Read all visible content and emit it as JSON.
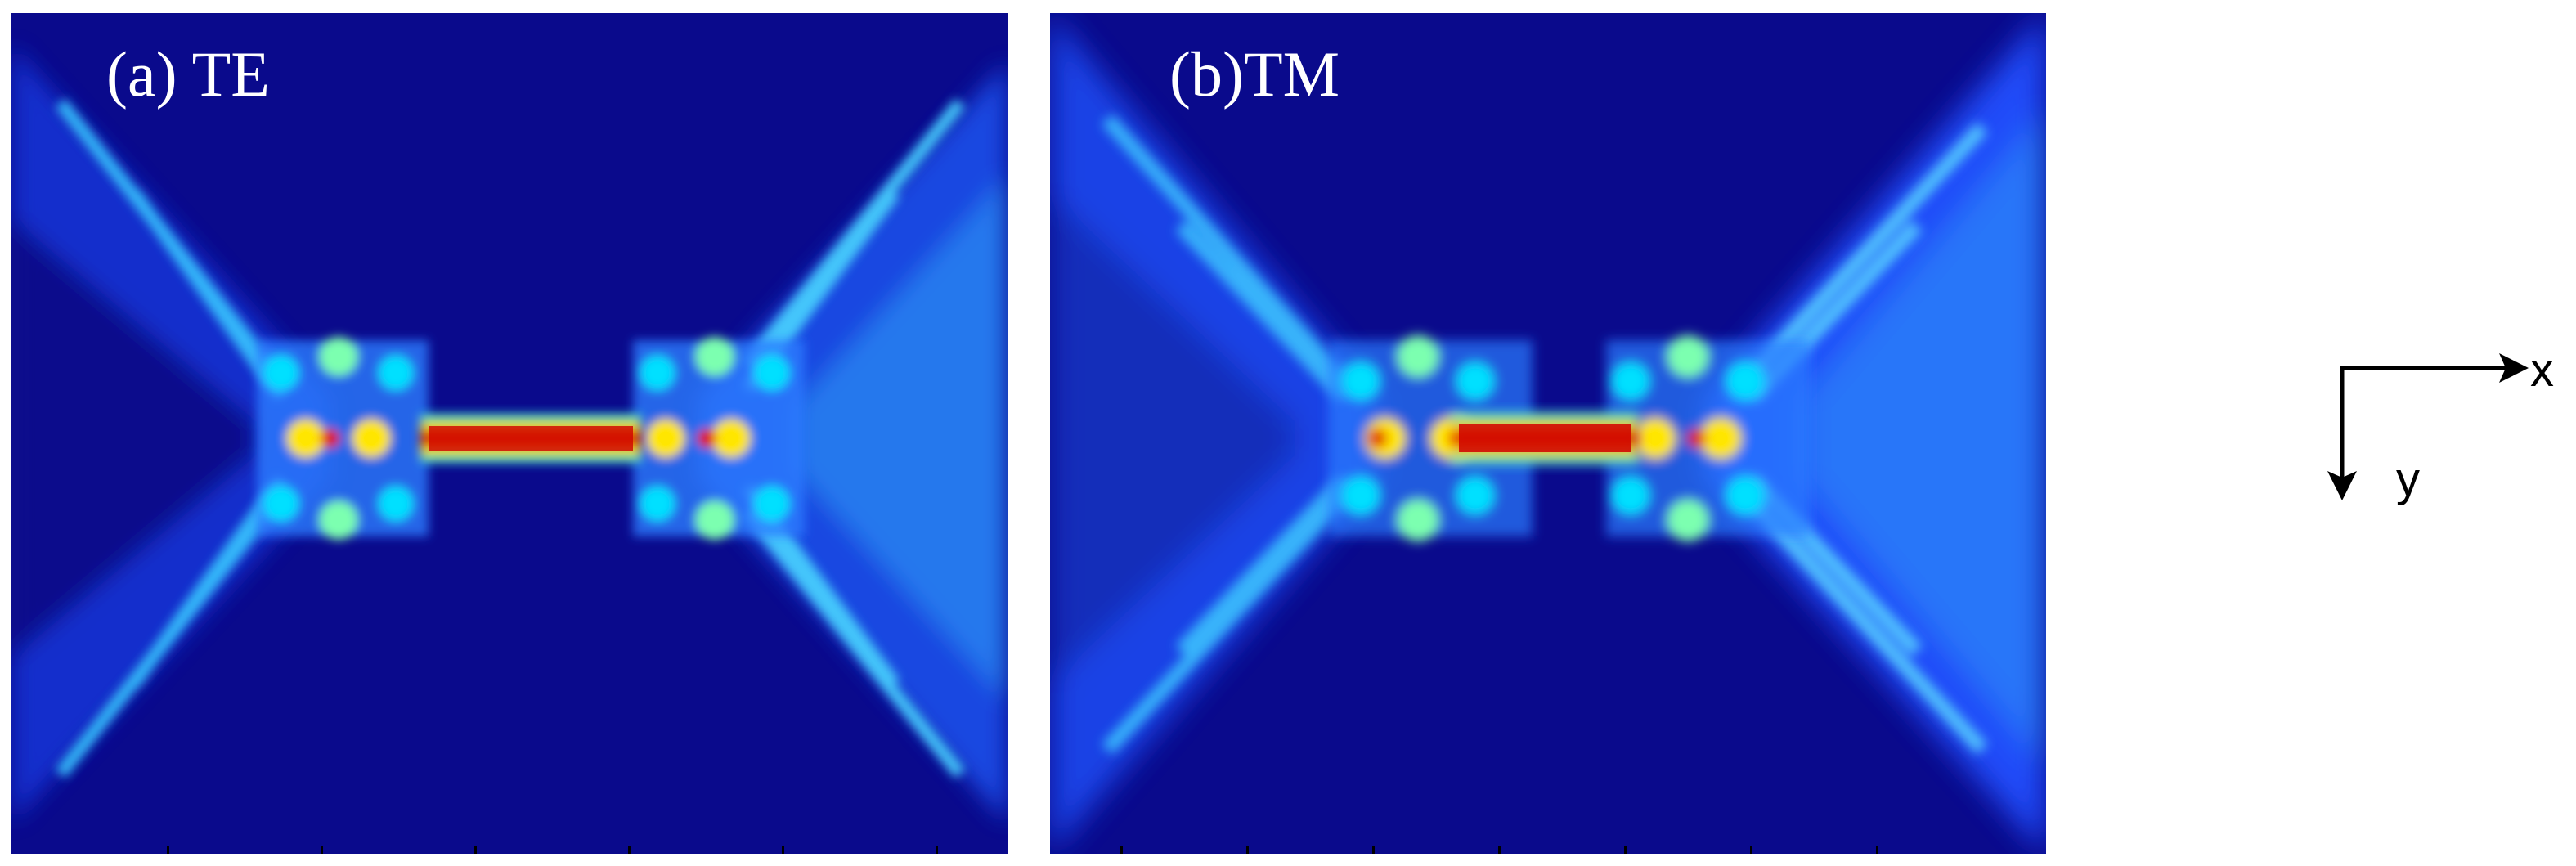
{
  "figure": {
    "panels": [
      {
        "id": "a",
        "label": "(a) TE"
      },
      {
        "id": "b",
        "label": "(b)TM"
      }
    ],
    "axes": {
      "x_label": "x",
      "y_label": "y"
    },
    "colormap": {
      "background": "#0a0a8c",
      "low": "#1e3cff",
      "mid": "#00d9ff",
      "high": "#ffe600",
      "peak": "#e00000"
    }
  }
}
